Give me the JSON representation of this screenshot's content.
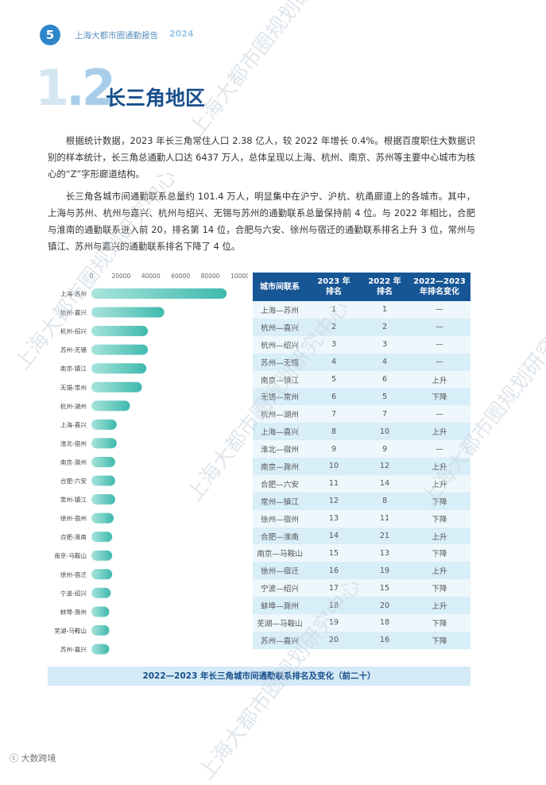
{
  "header": {
    "page_number": "5",
    "report_title": "上海大都市圈通勤报告",
    "year": "2024"
  },
  "section": {
    "number_prefix": "1",
    "number_suffix": ".2",
    "title": "长三角地区"
  },
  "paragraphs": [
    "根据统计数据，2023 年长三角常住人口 2.38 亿人，较 2022 年增长 0.4%。根据百度职住大数据识别的样本统计，长三角总通勤人口达 6437 万人，总体呈现以上海、杭州、南京、苏州等主要中心城市为核心的“Z”字形廊道结构。",
    "长三角各城市间通勤联系总量约 101.4 万人，明显集中在沪宁、沪杭、杭甬廊道上的各城市。其中，上海与苏州、杭州与嘉兴、杭州与绍兴、无锡与苏州的通勤联系总量保持前 4 位。与 2022 年相比，合肥与淮南的通勤联系进入前 20，排名第 14 位，合肥与六安、徐州与宿迁的通勤联系排名上升 3 位，常州与镇江、苏州与嘉兴的通勤联系排名下降了 4 位。"
  ],
  "chart_data": {
    "type": "bar",
    "orientation": "horizontal",
    "categories": [
      "上海-苏州",
      "杭州-嘉兴",
      "杭州-绍兴",
      "苏州-无锡",
      "南京-镇江",
      "无锡-常州",
      "杭州-湖州",
      "上海-嘉兴",
      "淮北-宿州",
      "南京-滁州",
      "合肥-六安",
      "常州-镇江",
      "徐州-宿州",
      "合肥-淮南",
      "南京-马鞍山",
      "徐州-宿迁",
      "宁波-绍兴",
      "蚌埠-滁州",
      "芜湖-马鞍山",
      "苏州-嘉兴"
    ],
    "values": [
      91000,
      49000,
      38000,
      38000,
      37000,
      34000,
      26000,
      17000,
      17000,
      16000,
      16000,
      16000,
      15000,
      14000,
      14000,
      14000,
      13000,
      12000,
      12000,
      12000
    ],
    "xticks": [
      "0",
      "20000",
      "40000",
      "60000",
      "80000",
      "100000 人"
    ],
    "xlim": [
      0,
      100000
    ],
    "bar_color_start": "#a9e4dc",
    "bar_color_end": "#3fb9ad"
  },
  "table": {
    "headers": [
      "城市间联系",
      "2023 年\n排名",
      "2022 年\n排名",
      "2022—2023\n年排名变化"
    ],
    "rows": [
      [
        "上海—苏州",
        "1",
        "1",
        "—"
      ],
      [
        "杭州—嘉兴",
        "2",
        "2",
        "—"
      ],
      [
        "杭州—绍兴",
        "3",
        "3",
        "—"
      ],
      [
        "苏州—无锡",
        "4",
        "4",
        "—"
      ],
      [
        "南京—镇江",
        "5",
        "6",
        "上升"
      ],
      [
        "无锡—常州",
        "6",
        "5",
        "下降"
      ],
      [
        "杭州—湖州",
        "7",
        "7",
        "—"
      ],
      [
        "上海—嘉兴",
        "8",
        "10",
        "上升"
      ],
      [
        "淮北—宿州",
        "9",
        "9",
        "—"
      ],
      [
        "南京—滁州",
        "10",
        "12",
        "上升"
      ],
      [
        "合肥—六安",
        "11",
        "14",
        "上升"
      ],
      [
        "常州—镇江",
        "12",
        "8",
        "下降"
      ],
      [
        "徐州—宿州",
        "13",
        "11",
        "下降"
      ],
      [
        "合肥—淮南",
        "14",
        "21",
        "上升"
      ],
      [
        "南京—马鞍山",
        "15",
        "13",
        "下降"
      ],
      [
        "徐州—宿迁",
        "16",
        "19",
        "上升"
      ],
      [
        "宁波—绍兴",
        "17",
        "15",
        "下降"
      ],
      [
        "蚌埠—滁州",
        "18",
        "20",
        "上升"
      ],
      [
        "芜湖—马鞍山",
        "19",
        "18",
        "下降"
      ],
      [
        "苏州—嘉兴",
        "20",
        "16",
        "下降"
      ]
    ]
  },
  "caption": "2022—2023 年长三角城市间通勤联系排名及变化（前二十）",
  "watermark": "上海大都市圈规划研究中心",
  "footer_logo": "大数跨境"
}
